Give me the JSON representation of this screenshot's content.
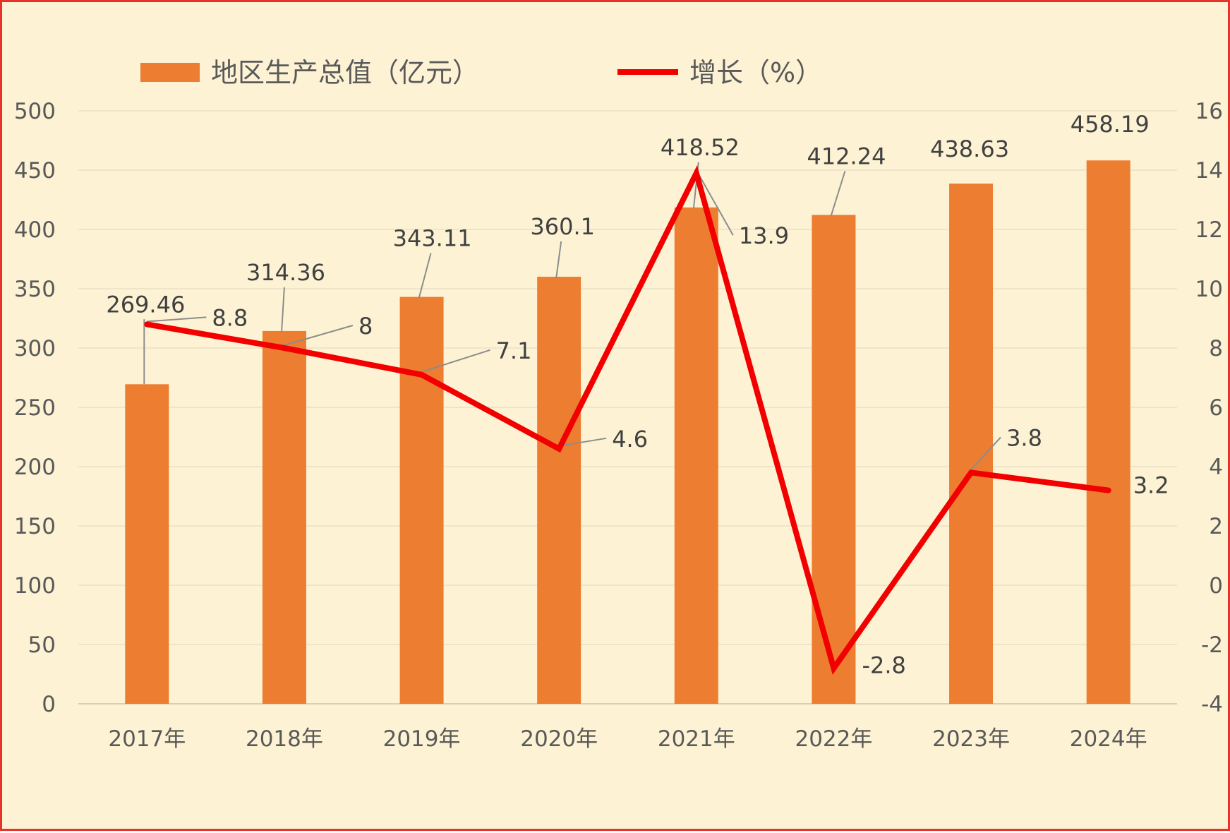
{
  "chart_data": {
    "type": "bar",
    "categories": [
      "2017年",
      "2018年",
      "2019年",
      "2020年",
      "2021年",
      "2022年",
      "2023年",
      "2024年"
    ],
    "series": [
      {
        "name": "地区生产总值（亿元）",
        "type": "bar",
        "axis": "left",
        "values": [
          269.46,
          314.36,
          343.11,
          360.1,
          418.52,
          412.24,
          438.63,
          458.19
        ],
        "labels": [
          "269.46",
          "314.36",
          "343.11",
          "360.1",
          "418.52",
          "412.24",
          "438.63",
          "458.19"
        ]
      },
      {
        "name": "增长（%）",
        "type": "line",
        "axis": "right",
        "values": [
          8.8,
          8,
          7.1,
          4.6,
          13.9,
          -2.8,
          3.8,
          3.2
        ],
        "labels": [
          "8.8",
          "8",
          "7.1",
          "4.6",
          "13.9",
          "-2.8",
          "3.8",
          "3.2"
        ]
      }
    ],
    "y_left": {
      "ylim": [
        0,
        500
      ],
      "ticks": [
        "0",
        "50",
        "100",
        "150",
        "200",
        "250",
        "300",
        "350",
        "400",
        "450",
        "500"
      ]
    },
    "y_right": {
      "ylim": [
        -4,
        16
      ],
      "ticks": [
        "-4",
        "-2",
        "0",
        "2",
        "4",
        "6",
        "8",
        "10",
        "12",
        "14",
        "16"
      ]
    },
    "legend": "top",
    "grid": true
  },
  "colors": {
    "background": "#fdf3d4",
    "border": "#e8322c",
    "bar": "#ed7d31",
    "line": "#f20000",
    "gridline": "#e9dfc6",
    "axis_text": "#595959",
    "label_text": "#404040",
    "leader_line": "#8c8c8c"
  }
}
